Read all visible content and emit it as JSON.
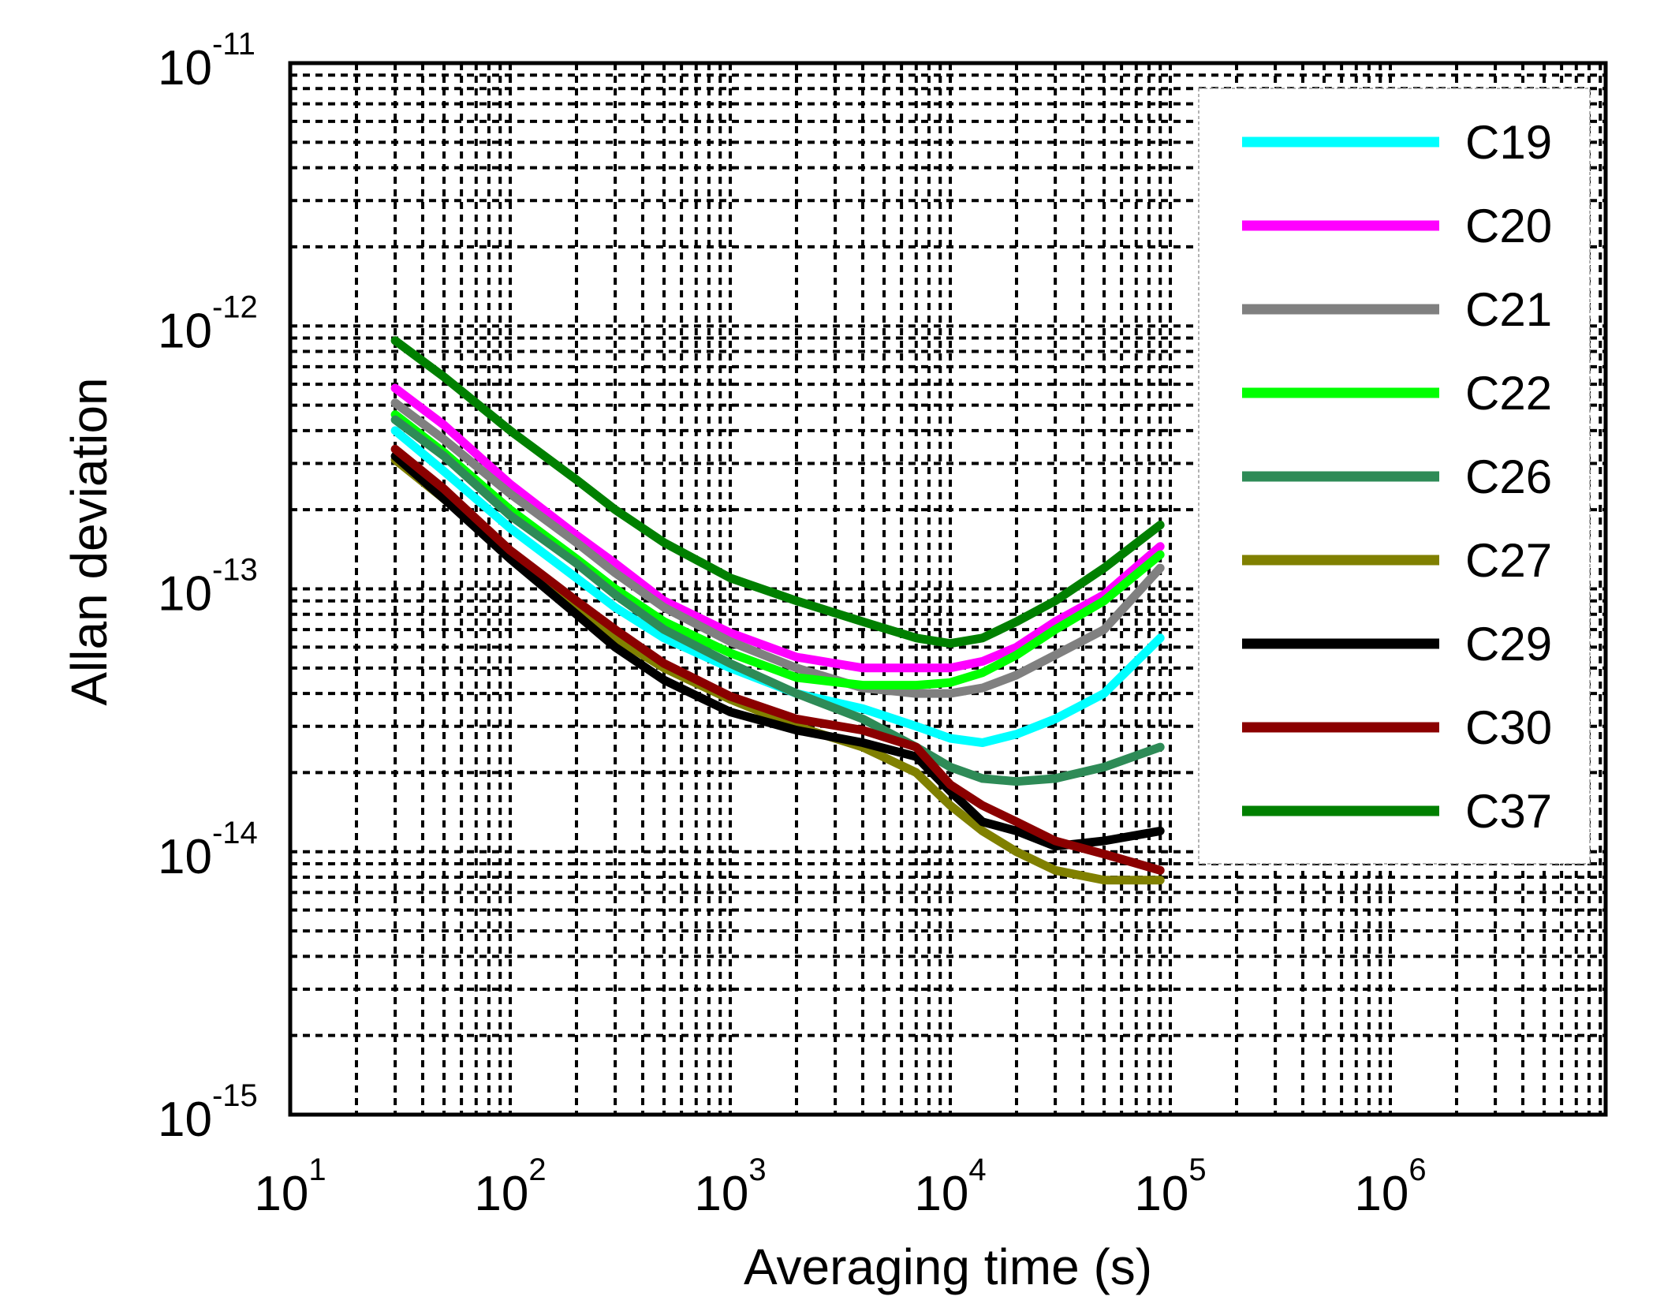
{
  "chart_data": {
    "type": "line",
    "xscale": "log",
    "yscale": "log",
    "xlabel": "Averaging time (s)",
    "ylabel": "Allan deviation",
    "xlim": [
      10,
      10000000
    ],
    "ylim": [
      1e-15,
      1e-11
    ],
    "grid": true,
    "legend_position": "top-right",
    "x_ticks": [
      {
        "base": "10",
        "exp": "1"
      },
      {
        "base": "10",
        "exp": "2"
      },
      {
        "base": "10",
        "exp": "3"
      },
      {
        "base": "10",
        "exp": "4"
      },
      {
        "base": "10",
        "exp": "5"
      },
      {
        "base": "10",
        "exp": "6"
      }
    ],
    "y_ticks": [
      {
        "base": "10",
        "exp": "-15"
      },
      {
        "base": "10",
        "exp": "-14"
      },
      {
        "base": "10",
        "exp": "-13"
      },
      {
        "base": "10",
        "exp": "-12"
      },
      {
        "base": "10",
        "exp": "-11"
      }
    ],
    "x": [
      30,
      50,
      100,
      200,
      300,
      500,
      1000,
      2000,
      4000,
      7000,
      10000,
      14000,
      20000,
      30000,
      50000,
      90000
    ],
    "series": [
      {
        "name": "C19",
        "color": "#00FFFF",
        "values": [
          4e-13,
          2.8e-13,
          1.7e-13,
          1.1e-13,
          8.5e-14,
          6.5e-14,
          5e-14,
          4e-14,
          3.5e-14,
          3e-14,
          2.7e-14,
          2.6e-14,
          2.8e-14,
          3.2e-14,
          4e-14,
          6.5e-14
        ]
      },
      {
        "name": "C20",
        "color": "#FF00FF",
        "values": [
          5.8e-13,
          4.2e-13,
          2.5e-13,
          1.6e-13,
          1.25e-13,
          9e-14,
          6.8e-14,
          5.5e-14,
          5e-14,
          5e-14,
          5e-14,
          5.3e-14,
          6e-14,
          7.5e-14,
          9.5e-14,
          1.45e-13
        ]
      },
      {
        "name": "C21",
        "color": "#808080",
        "values": [
          5.1e-13,
          3.7e-13,
          2.3e-13,
          1.5e-13,
          1.15e-13,
          8.5e-14,
          6.3e-14,
          5e-14,
          4.2e-14,
          4e-14,
          4e-14,
          4.2e-14,
          4.7e-14,
          5.6e-14,
          7e-14,
          1.2e-13
        ]
      },
      {
        "name": "C22",
        "color": "#00FF00",
        "values": [
          4.6e-13,
          3.3e-13,
          2e-13,
          1.3e-13,
          1e-13,
          7.5e-14,
          5.7e-14,
          4.6e-14,
          4.3e-14,
          4.3e-14,
          4.4e-14,
          4.8e-14,
          5.6e-14,
          7e-14,
          9e-14,
          1.35e-13
        ]
      },
      {
        "name": "C26",
        "color": "#2E8B57",
        "values": [
          4.4e-13,
          3.2e-13,
          1.9e-13,
          1.25e-13,
          9.5e-14,
          7e-14,
          5.2e-14,
          4e-14,
          3.2e-14,
          2.5e-14,
          2.1e-14,
          1.9e-14,
          1.85e-14,
          1.9e-14,
          2.1e-14,
          2.5e-14
        ]
      },
      {
        "name": "C27",
        "color": "#808000",
        "values": [
          3.1e-13,
          2.2e-13,
          1.35e-13,
          8.5e-14,
          6.5e-14,
          5e-14,
          3.8e-14,
          3e-14,
          2.5e-14,
          2e-14,
          1.5e-14,
          1.2e-14,
          1e-14,
          8.5e-15,
          7.8e-15,
          7.8e-15
        ]
      },
      {
        "name": "C29",
        "color": "#000000",
        "values": [
          3.2e-13,
          2.2e-13,
          1.3e-13,
          8e-14,
          6e-14,
          4.5e-14,
          3.4e-14,
          2.9e-14,
          2.6e-14,
          2.3e-14,
          1.7e-14,
          1.3e-14,
          1.2e-14,
          1.05e-14,
          1.1e-14,
          1.2e-14
        ]
      },
      {
        "name": "C30",
        "color": "#8B0000",
        "values": [
          3.4e-13,
          2.4e-13,
          1.4e-13,
          9e-14,
          7e-14,
          5.2e-14,
          3.9e-14,
          3.2e-14,
          2.9e-14,
          2.5e-14,
          1.8e-14,
          1.5e-14,
          1.3e-14,
          1.1e-14,
          9.8e-15,
          8.5e-15
        ]
      },
      {
        "name": "C37",
        "color": "#008000",
        "values": [
          8.8e-13,
          6.4e-13,
          4e-13,
          2.6e-13,
          2e-13,
          1.5e-13,
          1.1e-13,
          9e-14,
          7.5e-14,
          6.5e-14,
          6.2e-14,
          6.5e-14,
          7.5e-14,
          9e-14,
          1.2e-13,
          1.75e-13
        ]
      }
    ]
  }
}
